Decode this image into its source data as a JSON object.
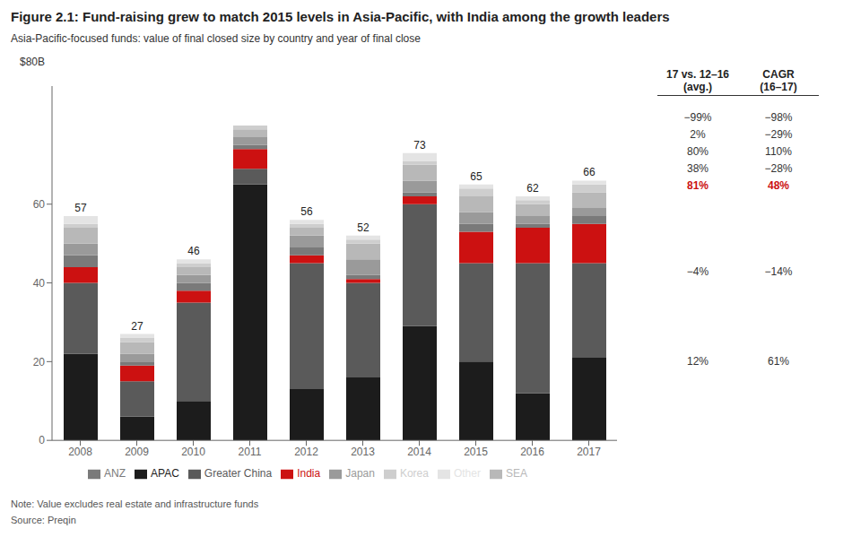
{
  "chart_data": {
    "type": "bar",
    "stacked": true,
    "grid": false,
    "legend": "bottom",
    "title": "Figure 2.1: Fund-raising grew to match 2015 levels in Asia-Pacific, with India among the growth leaders",
    "subtitle": "Asia-Pacific-focused funds: value of final closed size by country and year of final close",
    "ylabel": "$80B",
    "categories": [
      "2008",
      "2009",
      "2010",
      "2011",
      "2012",
      "2013",
      "2014",
      "2015",
      "2016",
      "2017"
    ],
    "series": [
      {
        "name": "APAC",
        "color": "#1c1c1c",
        "values": [
          22,
          6,
          10,
          65,
          13,
          16,
          29,
          20,
          12,
          21
        ]
      },
      {
        "name": "Greater China",
        "color": "#5a5a5a",
        "values": [
          18,
          9,
          25,
          4,
          32,
          24,
          31,
          25,
          33,
          24
        ]
      },
      {
        "name": "India",
        "color": "#cc1111",
        "values": [
          4,
          4,
          3,
          5,
          2,
          1,
          2,
          8,
          9,
          10
        ]
      },
      {
        "name": "ANZ",
        "color": "#7a7a7a",
        "values": [
          3,
          1,
          2,
          1,
          2,
          1,
          1,
          2,
          1,
          2
        ]
      },
      {
        "name": "Japan",
        "color": "#9a9a9a",
        "values": [
          3,
          2,
          2,
          2,
          3,
          4,
          3,
          3,
          2,
          2
        ]
      },
      {
        "name": "SEA",
        "color": "#b8b8b8",
        "values": [
          4,
          3,
          2,
          2,
          2,
          4,
          4,
          4,
          3,
          4
        ]
      },
      {
        "name": "Korea",
        "color": "#cecece",
        "values": [
          1,
          1,
          1,
          1,
          1,
          1,
          1,
          2,
          1,
          2
        ]
      },
      {
        "name": "Other",
        "color": "#e4e4e4",
        "values": [
          2,
          1,
          1,
          0,
          1,
          1,
          2,
          1,
          1,
          1
        ]
      }
    ],
    "totals": [
      57,
      27,
      46,
      80,
      56,
      52,
      73,
      65,
      62,
      66
    ],
    "ylim": [
      0,
      90
    ],
    "yticks": [
      0,
      20,
      40,
      60
    ],
    "table": {
      "headers": [
        [
          "17 vs. 12–16",
          "(avg.)"
        ],
        [
          "CAGR",
          "(16–17)"
        ]
      ],
      "groups": [
        [
          {
            "cells": [
              "−99%",
              "−98%"
            ]
          },
          {
            "cells": [
              "2%",
              "−29%"
            ]
          },
          {
            "cells": [
              "80%",
              "110%"
            ]
          },
          {
            "cells": [
              "38%",
              "−28%"
            ]
          },
          {
            "cells": [
              "81%",
              "48%"
            ],
            "color": "#cc1111"
          }
        ],
        [
          {
            "cells": [
              "−4%",
              "−14%"
            ]
          }
        ],
        [
          {
            "cells": [
              "12%",
              "61%"
            ]
          }
        ]
      ]
    },
    "note": "Note: Value excludes real estate and infrastructure funds",
    "source": "Source: Preqin"
  }
}
